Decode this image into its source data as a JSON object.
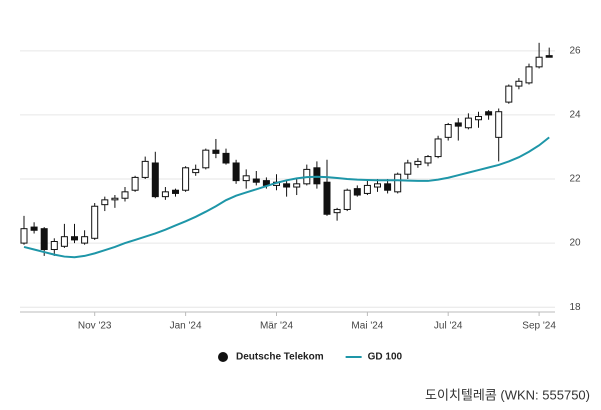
{
  "chart_data": {
    "type": "candlestick",
    "caption": "도이치텔레콤 (WKN: 555750)",
    "categories": [
      null,
      null,
      null,
      null,
      null,
      null,
      null,
      "Nov '23",
      null,
      null,
      null,
      null,
      null,
      null,
      null,
      null,
      "Jan '24",
      null,
      null,
      null,
      null,
      null,
      null,
      null,
      null,
      "Mär '24",
      null,
      null,
      null,
      null,
      null,
      null,
      null,
      null,
      "Mai '24",
      null,
      null,
      null,
      null,
      null,
      null,
      null,
      "Jul '24",
      null,
      null,
      null,
      null,
      null,
      null,
      null,
      null,
      "Sep '24",
      null
    ],
    "ylim": [
      17.85,
      26.65
    ],
    "yticks": [
      18,
      20,
      22,
      24,
      26
    ],
    "grid": true,
    "legend": "bottom",
    "series": [
      {
        "name": "Deutsche Telekom",
        "type": "candlestick",
        "color": "#111111",
        "open": [
          20.0,
          20.5,
          20.45,
          19.8,
          19.9,
          20.2,
          20.0,
          20.15,
          21.2,
          21.35,
          21.4,
          21.65,
          22.05,
          22.5,
          21.45,
          21.65,
          21.65,
          22.2,
          22.35,
          22.9,
          22.8,
          22.5,
          21.95,
          22.0,
          21.95,
          21.8,
          21.85,
          21.75,
          21.85,
          22.35,
          21.9,
          20.95,
          21.05,
          21.7,
          21.55,
          21.75,
          21.85,
          21.6,
          22.15,
          22.45,
          22.5,
          22.7,
          23.3,
          23.75,
          23.6,
          23.85,
          24.1,
          23.3,
          24.4,
          24.9,
          25.0,
          25.5,
          25.85
        ],
        "high": [
          20.85,
          20.65,
          20.5,
          20.15,
          20.6,
          20.6,
          20.4,
          21.25,
          21.45,
          21.5,
          21.75,
          22.1,
          22.7,
          22.85,
          21.75,
          21.7,
          22.4,
          22.45,
          22.95,
          23.25,
          22.95,
          22.6,
          22.3,
          22.25,
          22.05,
          22.15,
          21.95,
          22.0,
          22.45,
          22.55,
          22.6,
          21.1,
          21.7,
          21.8,
          21.95,
          22.0,
          22.0,
          22.2,
          22.6,
          22.65,
          22.75,
          23.35,
          23.75,
          23.9,
          24.05,
          24.1,
          24.15,
          24.2,
          24.95,
          25.15,
          25.6,
          26.25,
          26.1
        ],
        "low": [
          19.95,
          20.3,
          19.6,
          19.6,
          19.85,
          20.0,
          19.95,
          20.1,
          21.0,
          21.1,
          21.3,
          21.6,
          22.0,
          21.4,
          21.35,
          21.45,
          21.6,
          22.1,
          22.3,
          22.65,
          22.45,
          21.85,
          21.7,
          21.8,
          21.7,
          21.65,
          21.45,
          21.5,
          21.8,
          21.7,
          20.85,
          20.7,
          21.0,
          21.45,
          21.5,
          21.6,
          21.55,
          21.55,
          22.0,
          22.35,
          22.4,
          22.65,
          23.2,
          23.2,
          23.55,
          23.6,
          23.85,
          22.55,
          24.35,
          24.8,
          24.95,
          25.45,
          25.8
        ],
        "close": [
          20.45,
          20.4,
          19.8,
          20.05,
          20.2,
          20.1,
          20.2,
          21.15,
          21.35,
          21.4,
          21.6,
          22.05,
          22.55,
          21.45,
          21.6,
          21.55,
          22.35,
          22.3,
          22.9,
          22.8,
          22.5,
          21.95,
          22.1,
          21.9,
          21.8,
          21.9,
          21.75,
          21.85,
          22.3,
          21.85,
          20.9,
          21.05,
          21.65,
          21.5,
          21.8,
          21.85,
          21.65,
          22.15,
          22.5,
          22.55,
          22.7,
          23.25,
          23.7,
          23.65,
          23.9,
          23.95,
          24.0,
          24.1,
          24.9,
          25.05,
          25.5,
          25.8,
          25.8
        ]
      },
      {
        "name": "GD 100",
        "type": "line",
        "color": "#1e96a8",
        "values": [
          19.88,
          19.8,
          19.72,
          19.64,
          19.58,
          19.56,
          19.6,
          19.68,
          19.78,
          19.88,
          20.0,
          20.1,
          20.2,
          20.3,
          20.42,
          20.55,
          20.68,
          20.82,
          20.98,
          21.15,
          21.34,
          21.48,
          21.58,
          21.68,
          21.78,
          21.88,
          21.96,
          22.02,
          22.06,
          22.07,
          22.06,
          22.03,
          22.0,
          21.98,
          21.97,
          21.96,
          21.96,
          21.96,
          21.95,
          21.94,
          21.94,
          21.98,
          22.04,
          22.12,
          22.2,
          22.28,
          22.36,
          22.44,
          22.55,
          22.68,
          22.85,
          23.05,
          23.3
        ]
      }
    ]
  }
}
